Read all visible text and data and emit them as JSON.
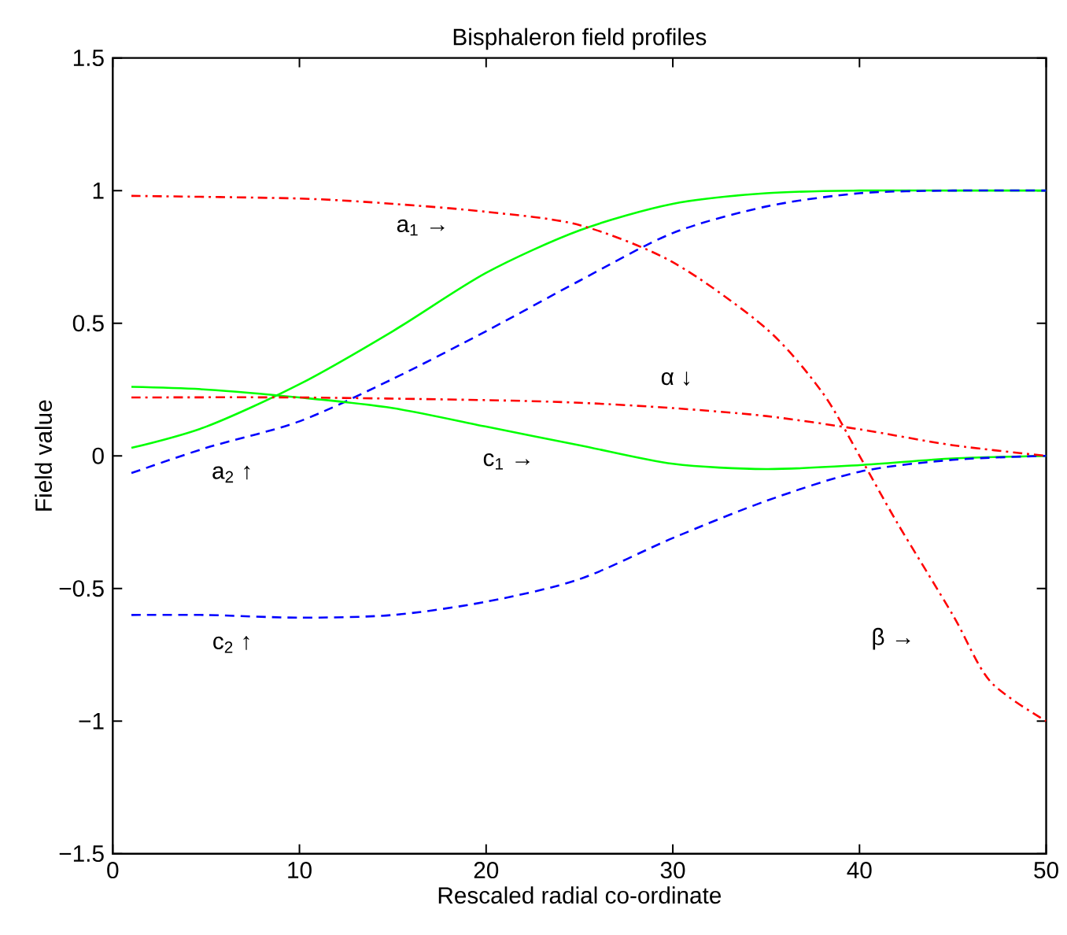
{
  "chart_data": {
    "type": "line",
    "title": "Bisphaleron field profiles",
    "xlabel": "Rescaled radial co-ordinate",
    "ylabel": "Field value",
    "xlim": [
      0,
      50
    ],
    "ylim": [
      -1.5,
      1.5
    ],
    "xticks": [
      0,
      10,
      20,
      30,
      40,
      50
    ],
    "yticks": [
      {
        "value": -1.5,
        "label": "−1.5"
      },
      {
        "value": -1,
        "label": "−1"
      },
      {
        "value": -0.5,
        "label": "−0.5"
      },
      0,
      0.5,
      1,
      1.5
    ],
    "grid": false,
    "marker": "none",
    "series": [
      {
        "color": "#00ff00",
        "line_style": "solid",
        "x": [
          1,
          5,
          10,
          15,
          20,
          25,
          30,
          35,
          40,
          45,
          50
        ],
        "values": [
          0.03,
          0.11,
          0.27,
          0.47,
          0.69,
          0.85,
          0.95,
          0.99,
          1.0,
          1.0,
          1.0
        ]
      },
      {
        "color": "#0000ff",
        "line_style": "dashed",
        "x": [
          1,
          5,
          10,
          15,
          20,
          25,
          30,
          35,
          40,
          45,
          50
        ],
        "values": [
          -0.065,
          0.03,
          0.13,
          0.29,
          0.47,
          0.66,
          0.84,
          0.94,
          0.99,
          1.0,
          1.0
        ]
      },
      {
        "color": "#00ff00",
        "line_style": "solid",
        "x": [
          1,
          5,
          10,
          15,
          20,
          25,
          30,
          35,
          40,
          45,
          50
        ],
        "values": [
          0.26,
          0.25,
          0.22,
          0.18,
          0.11,
          0.04,
          -0.03,
          -0.05,
          -0.035,
          -0.01,
          0
        ]
      },
      {
        "color": "#0000ff",
        "line_style": "dashed",
        "x": [
          1,
          5,
          10,
          15,
          20,
          25,
          30,
          35,
          40,
          45,
          50
        ],
        "values": [
          -0.6,
          -0.6,
          -0.61,
          -0.6,
          -0.55,
          -0.465,
          -0.31,
          -0.17,
          -0.06,
          -0.015,
          0
        ]
      },
      {
        "color": "#ff0000",
        "line_style": "dashdot",
        "x": [
          1,
          10,
          20,
          25,
          30,
          35,
          40,
          45,
          50
        ],
        "values": [
          0.22,
          0.22,
          0.21,
          0.2,
          0.18,
          0.15,
          0.1,
          0.04,
          0
        ]
      },
      {
        "color": "#ff0000",
        "line_style": "dashdot",
        "x": [
          1,
          10,
          15,
          20,
          25,
          30,
          35,
          38,
          40,
          42,
          45,
          47,
          50
        ],
        "values": [
          0.98,
          0.97,
          0.95,
          0.92,
          0.87,
          0.73,
          0.48,
          0.24,
          0.0,
          -0.25,
          -0.6,
          -0.85,
          -1.0
        ]
      }
    ],
    "annotations": [
      "a$_{1}$ →",
      "a$_{2}$ ↑",
      "α ↓",
      "c$_{1}$ →",
      "c$_{2}$ ↑",
      "β →"
    ]
  }
}
